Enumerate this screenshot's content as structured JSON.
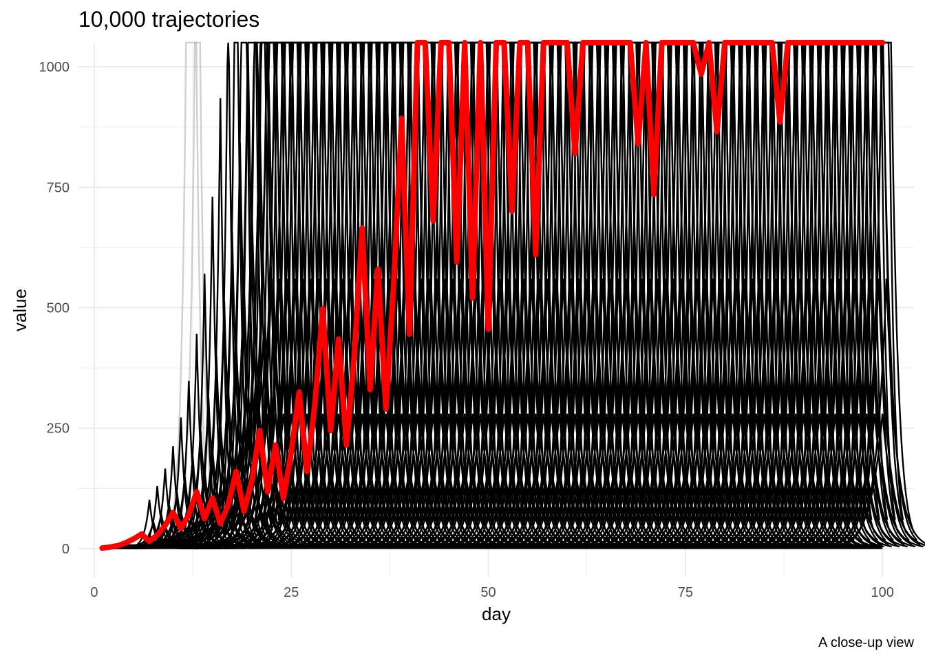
{
  "chart_data": {
    "type": "line",
    "title": "10,000 trajectories",
    "xlabel": "day",
    "ylabel": "value",
    "caption": "A close-up view",
    "xlim": [
      -2,
      104
    ],
    "ylim": [
      -60,
      1050
    ],
    "xticks": [
      0,
      25,
      50,
      75,
      100
    ],
    "yticks": [
      0,
      250,
      500,
      750,
      1000
    ],
    "grid": true,
    "legend": "none",
    "colors": {
      "background_lines": "#000000",
      "faded_lines": "#999999",
      "highlight": "#ff0000",
      "grid": "#ebebeb"
    },
    "series": [
      {
        "role": "highlight",
        "x": [
          1,
          2,
          3,
          4,
          5,
          6,
          7,
          8,
          9,
          10,
          11,
          12,
          13,
          14,
          15,
          16,
          17,
          18,
          19,
          20,
          21,
          22,
          23,
          24,
          25,
          26,
          27,
          28,
          29,
          30,
          31,
          32,
          33,
          34,
          35,
          36,
          37,
          38,
          39,
          40,
          41,
          42,
          43,
          44,
          45,
          46,
          47,
          48,
          49,
          50,
          51,
          52,
          53,
          54,
          55,
          56,
          57,
          58,
          59,
          60,
          61,
          62,
          63,
          64,
          65,
          66,
          67,
          68,
          69,
          70,
          71,
          72,
          73,
          74,
          75,
          76,
          77,
          78,
          79,
          80,
          81,
          82,
          83,
          84,
          85,
          86,
          87,
          88,
          89,
          90,
          91,
          92,
          93,
          94,
          95,
          96,
          97,
          98,
          99,
          100
        ],
        "y": [
          1,
          3,
          6,
          12,
          20,
          30,
          15,
          28,
          48,
          75,
          42,
          70,
          118,
          62,
          105,
          52,
          90,
          160,
          78,
          140,
          245,
          118,
          215,
          104,
          200,
          325,
          160,
          300,
          498,
          245,
          435,
          215,
          400,
          665,
          330,
          580,
          290,
          550,
          893,
          445,
          1050,
          1050,
          680,
          1050,
          1050,
          595,
          1050,
          520,
          1050,
          455,
          1050,
          1050,
          700,
          1050,
          1050,
          610,
          1050,
          1050,
          1050,
          1050,
          820,
          1050,
          1050,
          1050,
          1050,
          1050,
          1050,
          1050,
          840,
          1050,
          735,
          1050,
          1050,
          1050,
          1050,
          1050,
          985,
          1050,
          865,
          1050,
          1050,
          1050,
          1050,
          1050,
          1050,
          1050,
          885,
          1050,
          1050,
          1050,
          1050,
          1050,
          1050,
          1050,
          1050,
          1050,
          1050,
          1050,
          1050,
          1050
        ]
      }
    ]
  }
}
